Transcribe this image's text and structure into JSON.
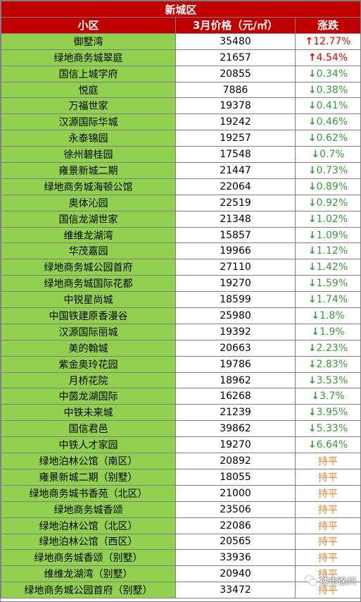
{
  "district": "新城区",
  "headers": {
    "name": "小区",
    "price": "3月价格（元/㎡）",
    "change": "涨跌"
  },
  "colors": {
    "header_bg": "#c00000",
    "name_bg": "#92d050",
    "up": "#e00000",
    "down": "#3a9a3a",
    "flat": "#ed7d31"
  },
  "rows": [
    {
      "name": "御墅湾",
      "price": "35480",
      "arrow": "↑",
      "change": "12.77%",
      "trend": "up"
    },
    {
      "name": "绿地商务城翠庭",
      "price": "21657",
      "arrow": "↑",
      "change": "4.54%",
      "trend": "up"
    },
    {
      "name": "国信上城学府",
      "price": "20855",
      "arrow": "↓",
      "change": "0.34%",
      "trend": "down"
    },
    {
      "name": "悦庭",
      "price": "7886",
      "arrow": "↓",
      "change": "0.38%",
      "trend": "down"
    },
    {
      "name": "万福世家",
      "price": "19378",
      "arrow": "↓",
      "change": "0.41%",
      "trend": "down"
    },
    {
      "name": "汉源国际华城",
      "price": "19242",
      "arrow": "↓",
      "change": "0.46%",
      "trend": "down"
    },
    {
      "name": "永泰锦园",
      "price": "19257",
      "arrow": "↓",
      "change": "0.62%",
      "trend": "down"
    },
    {
      "name": "徐州碧桂园",
      "price": "17548",
      "arrow": "↓",
      "change": "0.7%",
      "trend": "down"
    },
    {
      "name": "雍景新城二期",
      "price": "21447",
      "arrow": "↓",
      "change": "0.73%",
      "trend": "down"
    },
    {
      "name": "绿地商务城海顿公馆",
      "price": "22064",
      "arrow": "↓",
      "change": "0.89%",
      "trend": "down"
    },
    {
      "name": "奥体沁园",
      "price": "22519",
      "arrow": "↓",
      "change": "0.92%",
      "trend": "down"
    },
    {
      "name": "国信龙湖世家",
      "price": "21348",
      "arrow": "↓",
      "change": "1.02%",
      "trend": "down"
    },
    {
      "name": "维维龙湖湾",
      "price": "15857",
      "arrow": "↓",
      "change": "1.09%",
      "trend": "down"
    },
    {
      "name": "华茂嘉园",
      "price": "19966",
      "arrow": "↓",
      "change": "1.12%",
      "trend": "down"
    },
    {
      "name": "绿地商务城公园首府",
      "price": "27110",
      "arrow": "↓",
      "change": "1.42%",
      "trend": "down"
    },
    {
      "name": "绿地商务城国际花都",
      "price": "19270",
      "arrow": "↓",
      "change": "1.59%",
      "trend": "down"
    },
    {
      "name": "中锐星尚城",
      "price": "18599",
      "arrow": "↓",
      "change": "1.74%",
      "trend": "down"
    },
    {
      "name": "中国铁建原香漫谷",
      "price": "25980",
      "arrow": "↓",
      "change": "1.8%",
      "trend": "down"
    },
    {
      "name": "汉源国际丽城",
      "price": "19392",
      "arrow": "↓",
      "change": "1.9%",
      "trend": "down"
    },
    {
      "name": "美的翰城",
      "price": "20663",
      "arrow": "↓",
      "change": "2.23%",
      "trend": "down"
    },
    {
      "name": "紫金奥玲花园",
      "price": "19786",
      "arrow": "↓",
      "change": "2.83%",
      "trend": "down"
    },
    {
      "name": "月桥花院",
      "price": "18962",
      "arrow": "↓",
      "change": "3.53%",
      "trend": "down"
    },
    {
      "name": "中茵龙湖国际",
      "price": "16268",
      "arrow": "↓",
      "change": "3.7%",
      "trend": "down"
    },
    {
      "name": "中铁未来城",
      "price": "21239",
      "arrow": "↓",
      "change": "3.95%",
      "trend": "down"
    },
    {
      "name": "国信君邑",
      "price": "39862",
      "arrow": "↓",
      "change": "5.33%",
      "trend": "down"
    },
    {
      "name": "中铁人才家园",
      "price": "19270",
      "arrow": "↓",
      "change": "6.64%",
      "trend": "down"
    },
    {
      "name": "绿地泊林公馆（南区）",
      "price": "20892",
      "arrow": "",
      "change": "持平",
      "trend": "flat"
    },
    {
      "name": "雍景新城二期（别墅）",
      "price": "18055",
      "arrow": "",
      "change": "持平",
      "trend": "flat"
    },
    {
      "name": "绿地商务城书香苑（北区）",
      "price": "21000",
      "arrow": "",
      "change": "持平",
      "trend": "flat"
    },
    {
      "name": "绿地商务城香颂",
      "price": "23506",
      "arrow": "",
      "change": "持平",
      "trend": "flat"
    },
    {
      "name": "绿地泊林公馆（北区）",
      "price": "22086",
      "arrow": "",
      "change": "持平",
      "trend": "flat"
    },
    {
      "name": "绿地泊林公馆（西区）",
      "price": "20565",
      "arrow": "",
      "change": "持平",
      "trend": "flat"
    },
    {
      "name": "绿地商务城香颂（别墅）",
      "price": "33936",
      "arrow": "",
      "change": "持平",
      "trend": "flat"
    },
    {
      "name": "维维龙湖湾（别墅）",
      "price": "20940",
      "arrow": "",
      "change": "持平",
      "trend": "flat"
    },
    {
      "name": "绿地商务城公园首府（别墅）",
      "price": "33472",
      "arrow": "",
      "change": "持平",
      "trend": "flat"
    }
  ],
  "watermark": "楼市徐州"
}
